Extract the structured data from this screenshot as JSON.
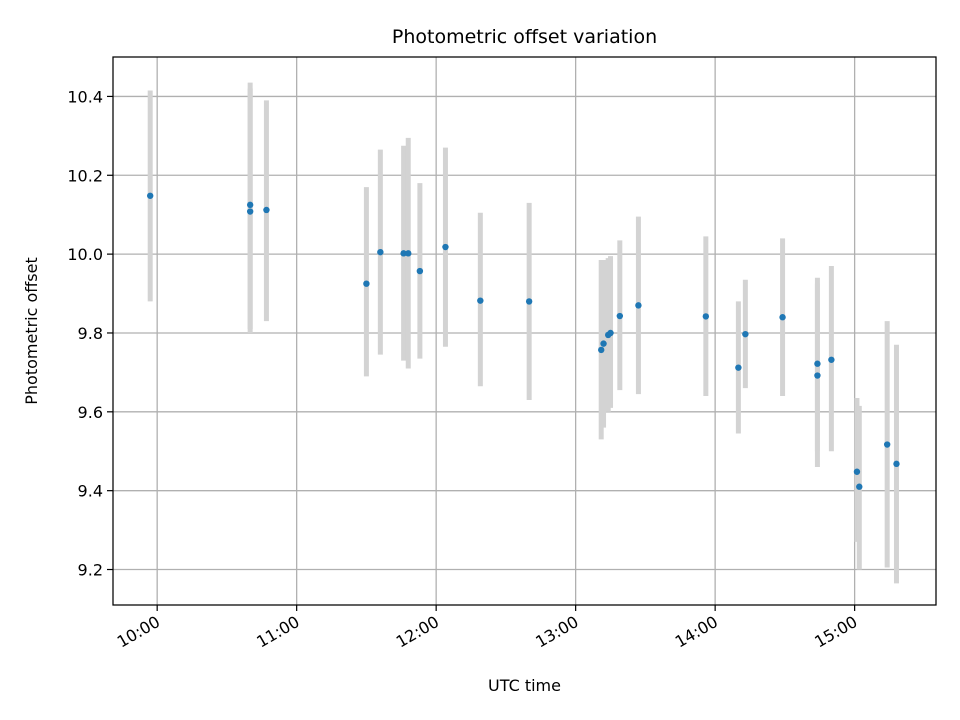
{
  "chart_data": {
    "type": "scatter",
    "title": "Photometric offset variation",
    "xlabel": "UTC time",
    "ylabel": "Photometric offset",
    "x_axis_type": "time",
    "xlim": [
      "09:41",
      "15:35"
    ],
    "ylim": [
      9.11,
      10.5
    ],
    "x_ticks": [
      "10:00",
      "11:00",
      "12:00",
      "13:00",
      "14:00",
      "15:00"
    ],
    "y_ticks": [
      9.2,
      9.4,
      9.6,
      9.8,
      10.0,
      10.2,
      10.4
    ],
    "grid": true,
    "marker_color": "#1f77b4",
    "errorbar_color": "#d3d3d3",
    "points": [
      {
        "x": "09:57",
        "y": 10.148,
        "ylow": 9.88,
        "yhigh": 10.415
      },
      {
        "x": "10:40",
        "y": 10.125,
        "ylow": 9.8,
        "yhigh": 10.435
      },
      {
        "x": "10:40",
        "y": 10.108,
        "ylow": 9.81,
        "yhigh": 10.42
      },
      {
        "x": "10:47",
        "y": 10.112,
        "ylow": 9.83,
        "yhigh": 10.39
      },
      {
        "x": "11:30",
        "y": 9.925,
        "ylow": 9.69,
        "yhigh": 10.17
      },
      {
        "x": "11:36",
        "y": 10.005,
        "ylow": 9.745,
        "yhigh": 10.265
      },
      {
        "x": "11:46",
        "y": 10.002,
        "ylow": 9.73,
        "yhigh": 10.275
      },
      {
        "x": "11:48",
        "y": 10.002,
        "ylow": 9.71,
        "yhigh": 10.295
      },
      {
        "x": "11:53",
        "y": 9.957,
        "ylow": 9.735,
        "yhigh": 10.18
      },
      {
        "x": "12:04",
        "y": 10.018,
        "ylow": 9.765,
        "yhigh": 10.27
      },
      {
        "x": "12:19",
        "y": 9.882,
        "ylow": 9.665,
        "yhigh": 10.105
      },
      {
        "x": "12:40",
        "y": 9.88,
        "ylow": 9.63,
        "yhigh": 10.13
      },
      {
        "x": "13:11",
        "y": 9.757,
        "ylow": 9.53,
        "yhigh": 9.985
      },
      {
        "x": "13:12",
        "y": 9.773,
        "ylow": 9.56,
        "yhigh": 9.985
      },
      {
        "x": "13:14",
        "y": 9.795,
        "ylow": 9.6,
        "yhigh": 9.99
      },
      {
        "x": "13:15",
        "y": 9.8,
        "ylow": 9.61,
        "yhigh": 9.995
      },
      {
        "x": "13:19",
        "y": 9.843,
        "ylow": 9.655,
        "yhigh": 10.035
      },
      {
        "x": "13:27",
        "y": 9.87,
        "ylow": 9.645,
        "yhigh": 10.095
      },
      {
        "x": "13:56",
        "y": 9.842,
        "ylow": 9.64,
        "yhigh": 10.045
      },
      {
        "x": "14:10",
        "y": 9.712,
        "ylow": 9.545,
        "yhigh": 9.88
      },
      {
        "x": "14:13",
        "y": 9.797,
        "ylow": 9.66,
        "yhigh": 9.935
      },
      {
        "x": "14:29",
        "y": 9.84,
        "ylow": 9.64,
        "yhigh": 10.04
      },
      {
        "x": "14:44",
        "y": 9.722,
        "ylow": 9.5,
        "yhigh": 9.94
      },
      {
        "x": "14:44",
        "y": 9.692,
        "ylow": 9.46,
        "yhigh": 9.925
      },
      {
        "x": "14:50",
        "y": 9.732,
        "ylow": 9.5,
        "yhigh": 9.97
      },
      {
        "x": "15:01",
        "y": 9.448,
        "ylow": 9.27,
        "yhigh": 9.635
      },
      {
        "x": "15:02",
        "y": 9.41,
        "ylow": 9.2,
        "yhigh": 9.615
      },
      {
        "x": "15:14",
        "y": 9.517,
        "ylow": 9.205,
        "yhigh": 9.83
      },
      {
        "x": "15:18",
        "y": 9.468,
        "ylow": 9.165,
        "yhigh": 9.77
      }
    ]
  }
}
